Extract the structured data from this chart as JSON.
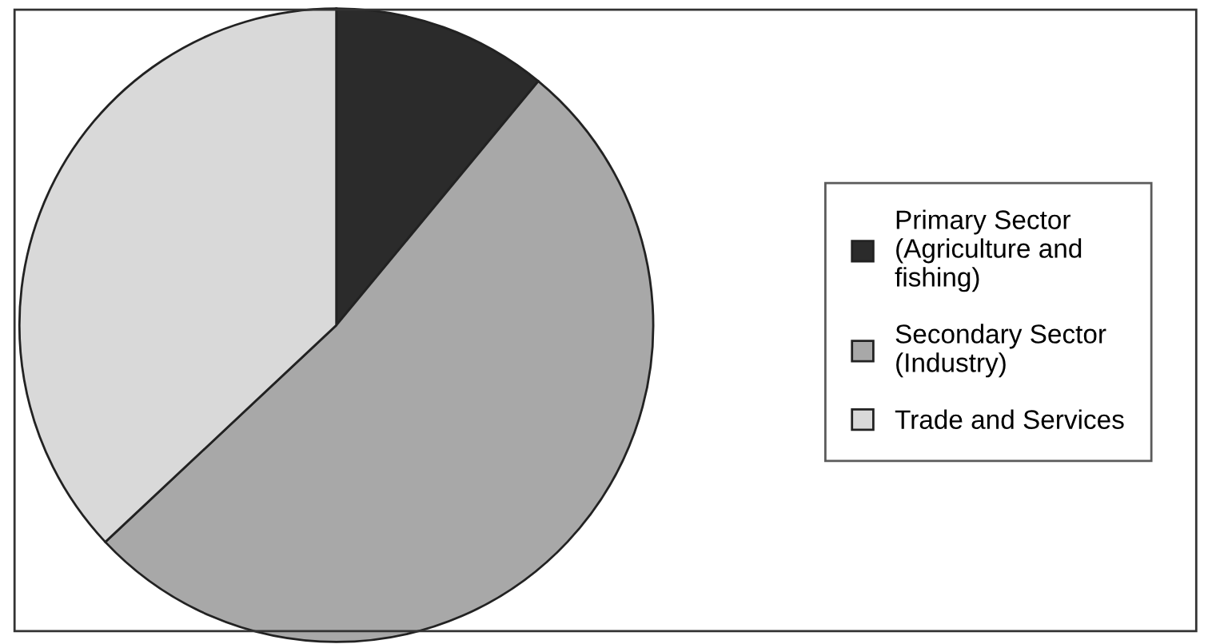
{
  "chart_data": {
    "type": "pie",
    "categories": [
      "Primary Sector\n(Agriculture and\nfishing)",
      "Secondary Sector\n(Industry)",
      "Trade and Services"
    ],
    "values": [
      11,
      52,
      37
    ],
    "colors": [
      "#2b2b2b",
      "#a8a8a8",
      "#d9d9d9"
    ],
    "legend": "right"
  }
}
